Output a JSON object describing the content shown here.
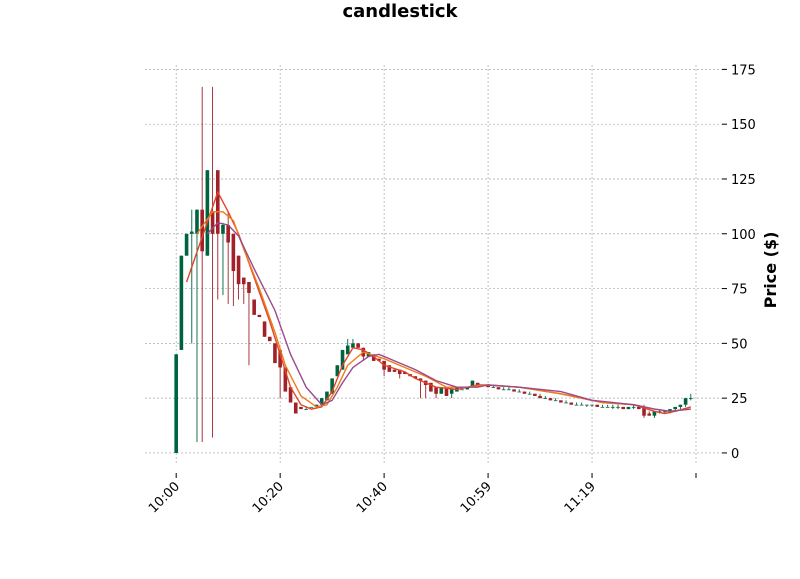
{
  "chart_data": {
    "type": "candlestick",
    "title": "candlestick",
    "y_label": "Price ($)",
    "up_color": "#006340",
    "down_color": "#a02128",
    "ohlc": [
      [
        0,
        45,
        0,
        45
      ],
      [
        47,
        90,
        47,
        90
      ],
      [
        90,
        100,
        90,
        100
      ],
      [
        100,
        111,
        50,
        101
      ],
      [
        100,
        111,
        5,
        111
      ],
      [
        111,
        167,
        5,
        92
      ],
      [
        90,
        129,
        90,
        129
      ],
      [
        110,
        167,
        7,
        100
      ],
      [
        129,
        129,
        70,
        100
      ],
      [
        100,
        105,
        72,
        104
      ],
      [
        104,
        110,
        68,
        96
      ],
      [
        100,
        100,
        67,
        83
      ],
      [
        90,
        90,
        70,
        77
      ],
      [
        80,
        80,
        68,
        77
      ],
      [
        78,
        78,
        40,
        73
      ],
      [
        70,
        70,
        63,
        63
      ],
      [
        63,
        63,
        62,
        62
      ],
      [
        60,
        60,
        53,
        53
      ],
      [
        53,
        53,
        51,
        51
      ],
      [
        50,
        50,
        41,
        41
      ],
      [
        47,
        47,
        25,
        39
      ],
      [
        39,
        39,
        28,
        28
      ],
      [
        30,
        30,
        23,
        23
      ],
      [
        23,
        23,
        18,
        18
      ],
      [
        21,
        21,
        20,
        20
      ],
      [
        20,
        21,
        20,
        20
      ],
      [
        21,
        21,
        21,
        21
      ],
      [
        21,
        22,
        21,
        22
      ],
      [
        22,
        25,
        22,
        25
      ],
      [
        24,
        28,
        24,
        28
      ],
      [
        27,
        34,
        27,
        34
      ],
      [
        35,
        40,
        35,
        40
      ],
      [
        38,
        47,
        38,
        47
      ],
      [
        45,
        52,
        45,
        49
      ],
      [
        48,
        52,
        48,
        50
      ],
      [
        50,
        50,
        48,
        48
      ],
      [
        48,
        48,
        42,
        44
      ],
      [
        44,
        46,
        44,
        46
      ],
      [
        45,
        45,
        42,
        42
      ],
      [
        43,
        43,
        42,
        42
      ],
      [
        42,
        42,
        35,
        38
      ],
      [
        40,
        40,
        37,
        37
      ],
      [
        38,
        38,
        37,
        37
      ],
      [
        38,
        38,
        34,
        36
      ],
      [
        37,
        37,
        36,
        36
      ],
      [
        36,
        36,
        35,
        35
      ],
      [
        35,
        35,
        34,
        34
      ],
      [
        34,
        34,
        25,
        33
      ],
      [
        33,
        33,
        25,
        31
      ],
      [
        32,
        32,
        28,
        28
      ],
      [
        30,
        30,
        25,
        27
      ],
      [
        27,
        30,
        27,
        30
      ],
      [
        30,
        30,
        26,
        26
      ],
      [
        27,
        29,
        25,
        29
      ],
      [
        28,
        30,
        28,
        30
      ],
      [
        29,
        29,
        29,
        29
      ],
      [
        29,
        30,
        29,
        30
      ],
      [
        30,
        33,
        30,
        33
      ],
      [
        32,
        32,
        31,
        31
      ],
      [
        31,
        31,
        31,
        31
      ],
      [
        31,
        31,
        30,
        30
      ],
      [
        30,
        31,
        30,
        30
      ],
      [
        30,
        30,
        29,
        29
      ],
      [
        29,
        30,
        29,
        29
      ],
      [
        29,
        30,
        29,
        29
      ],
      [
        29,
        29,
        28,
        28
      ],
      [
        28,
        29,
        28,
        28
      ],
      [
        28,
        28,
        27,
        27
      ],
      [
        27,
        28,
        27,
        27
      ],
      [
        27,
        27,
        26,
        26
      ],
      [
        26,
        27,
        25,
        25
      ],
      [
        25,
        26,
        25,
        25
      ],
      [
        25,
        25,
        24,
        24
      ],
      [
        24,
        25,
        24,
        24
      ],
      [
        24,
        24,
        23,
        23
      ],
      [
        23,
        24,
        23,
        23
      ],
      [
        23,
        23,
        22,
        22
      ],
      [
        22,
        23,
        22,
        22
      ],
      [
        22,
        23,
        22,
        22
      ],
      [
        22,
        22,
        21,
        22
      ],
      [
        22,
        22,
        21,
        22
      ],
      [
        22,
        22,
        21,
        21
      ],
      [
        21,
        22,
        21,
        21
      ],
      [
        21,
        22,
        21,
        21
      ],
      [
        21,
        22,
        20,
        21
      ],
      [
        21,
        22,
        20,
        21
      ],
      [
        21,
        21,
        20,
        20
      ],
      [
        20,
        21,
        20,
        21
      ],
      [
        21,
        22,
        20,
        21
      ],
      [
        21,
        21,
        20,
        20
      ],
      [
        21,
        22,
        16,
        17
      ],
      [
        18,
        19,
        17,
        17
      ],
      [
        17,
        19,
        16,
        19
      ],
      [
        19,
        20,
        18,
        19
      ],
      [
        19,
        19,
        18,
        19
      ],
      [
        19,
        20,
        18,
        20
      ],
      [
        20,
        21,
        19,
        21
      ],
      [
        21,
        22,
        20,
        22
      ],
      [
        22,
        25,
        21,
        25
      ],
      [
        25,
        27,
        24,
        25
      ]
    ],
    "mav": [
      {
        "color": "#e0452a",
        "x": [
          2,
          8,
          10,
          12,
          15,
          18,
          20,
          22,
          24,
          26,
          28,
          30,
          32,
          34,
          36,
          38,
          40,
          44,
          46,
          50,
          54,
          58,
          60,
          66,
          74,
          82,
          88,
          92,
          94,
          96,
          99
        ],
        "values": [
          78,
          119,
          110,
          100,
          80,
          60,
          45,
          30,
          22,
          20,
          21,
          28,
          40,
          48,
          47,
          44,
          40,
          37,
          34,
          30,
          29,
          31,
          31,
          30,
          27,
          23,
          22,
          19,
          18,
          19,
          21
        ]
      },
      {
        "color": "#f07a1a",
        "x": [
          4,
          7,
          9,
          11,
          13,
          16,
          19,
          21,
          24,
          27,
          29,
          31,
          33,
          36,
          40,
          44,
          48,
          52,
          56,
          60,
          66,
          74,
          82,
          88,
          92,
          95,
          99
        ],
        "values": [
          100,
          110,
          110,
          106,
          93,
          75,
          55,
          40,
          26,
          21,
          22,
          30,
          40,
          46,
          43,
          39,
          35,
          30,
          30,
          31,
          30,
          27,
          23,
          22,
          20,
          19,
          20
        ]
      },
      {
        "color": "#9b4a8a",
        "x": [
          6,
          8,
          10,
          12,
          15,
          19,
          22,
          25,
          28,
          30,
          32,
          34,
          37,
          39,
          42,
          46,
          50,
          54,
          58,
          60,
          66,
          74,
          80,
          88,
          92,
          95,
          99
        ],
        "values": [
          100,
          105,
          104,
          99,
          84,
          65,
          45,
          30,
          22,
          24,
          32,
          39,
          44,
          45,
          42,
          38,
          33,
          30,
          30,
          31,
          30,
          28,
          24,
          22,
          20,
          19,
          20
        ]
      }
    ],
    "xlim": [
      -6,
      105
    ],
    "xticks": [
      {
        "value": 0,
        "label": "10:00"
      },
      {
        "value": 20,
        "label": "10:20"
      },
      {
        "value": 40,
        "label": "10:40"
      },
      {
        "value": 60,
        "label": "10:59"
      },
      {
        "value": 80,
        "label": "11:19"
      },
      {
        "value": 100,
        "label": null
      }
    ],
    "ylim": [
      -5.5,
      177
    ],
    "yticks": [
      0,
      25,
      50,
      75,
      100,
      125,
      150,
      175
    ],
    "grid": true
  }
}
